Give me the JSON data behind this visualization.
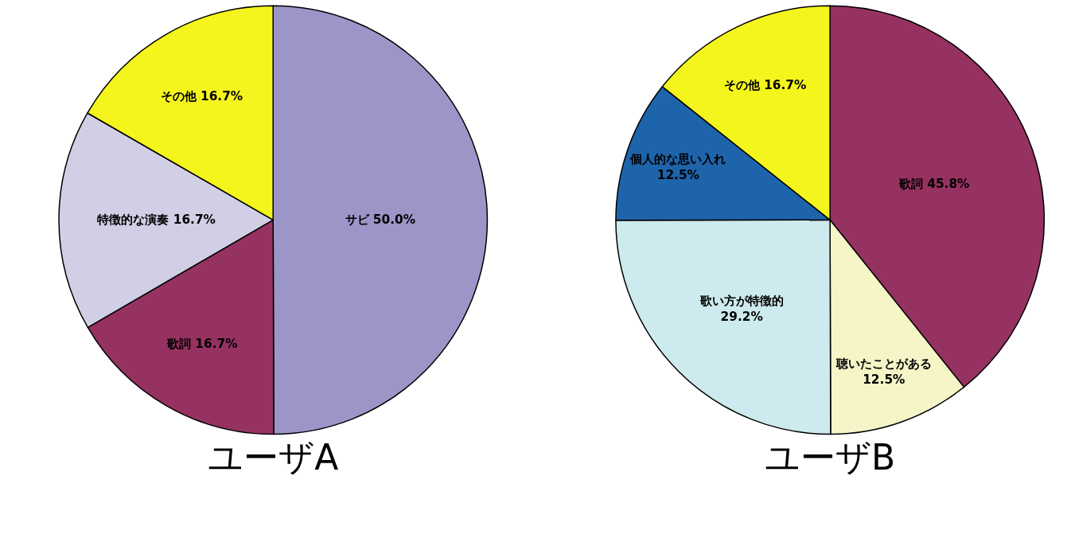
{
  "chart_data": [
    {
      "type": "pie",
      "title": "ユーザA",
      "categories": [
        "サビ",
        "歌詞",
        "特徴的な演奏",
        "その他"
      ],
      "values": [
        50.0,
        16.7,
        16.7,
        16.7
      ],
      "value_labels": [
        "50.0%",
        "16.7%",
        "16.7%",
        "16.7%"
      ],
      "colors": [
        "#9c96c8",
        "#963261",
        "#d0cfe6",
        "#f5f51e"
      ],
      "legend": false
    },
    {
      "type": "pie",
      "title": "ユーザB",
      "categories": [
        "歌詞",
        "聴いたことがある",
        "歌い方が特徴的",
        "個人的な思い入れ",
        "その他"
      ],
      "values": [
        45.8,
        12.5,
        29.2,
        12.5,
        16.7
      ],
      "value_labels": [
        "45.8%",
        "12.5%",
        "29.2%",
        "12.5%",
        "16.7%"
      ],
      "colors": [
        "#963261",
        "#f5f5c8",
        "#cdebee",
        "#1e64aa",
        "#f5f51e"
      ],
      "legend": false
    }
  ]
}
